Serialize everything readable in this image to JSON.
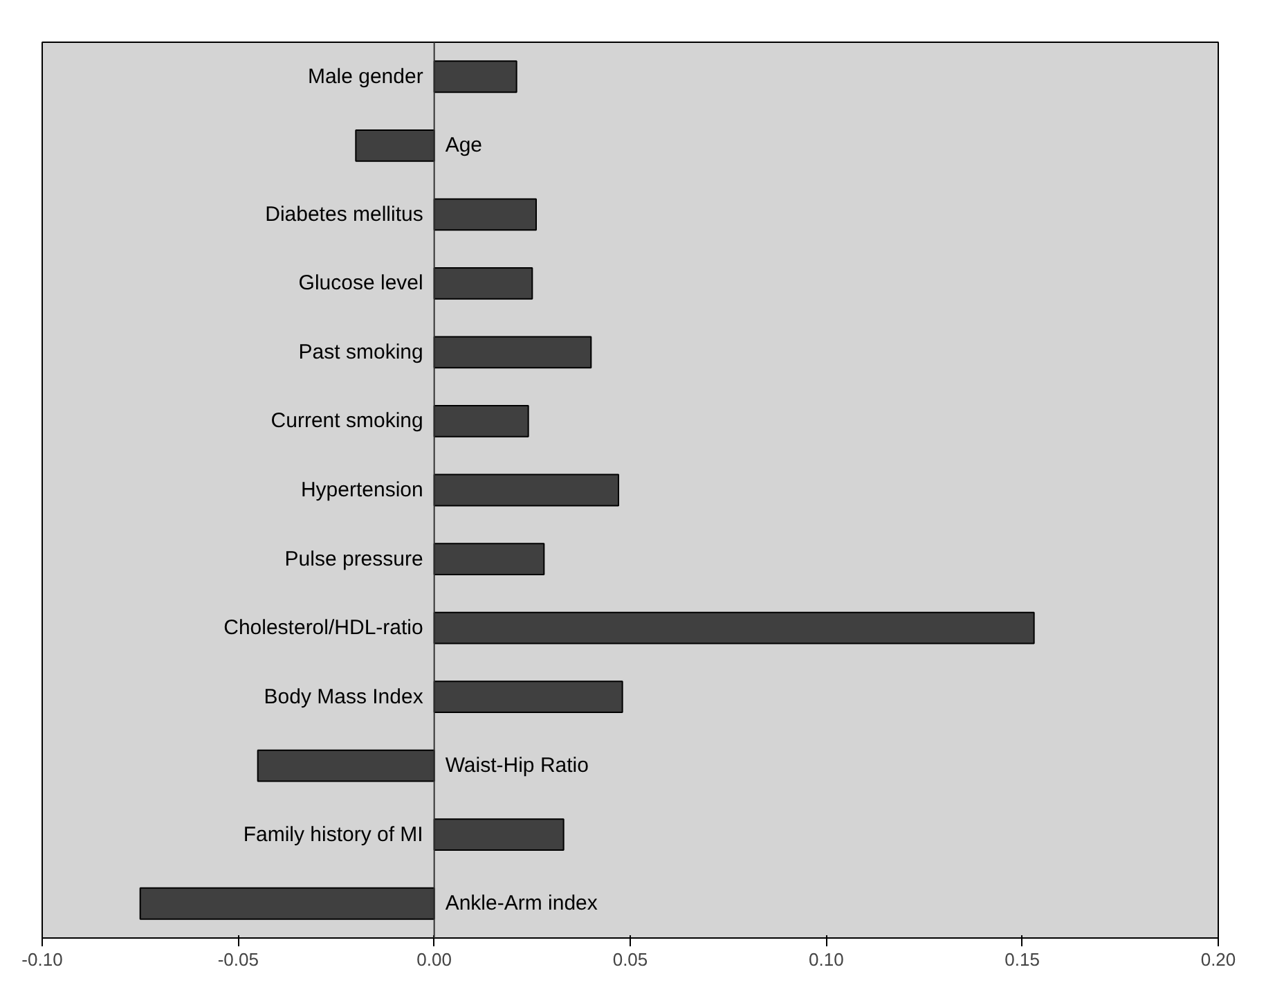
{
  "chart_data": {
    "type": "bar",
    "orientation": "horizontal",
    "categories": [
      "Male gender",
      "Age",
      "Diabetes mellitus",
      "Glucose level",
      "Past smoking",
      "Current smoking",
      "Hypertension",
      "Pulse pressure",
      "Cholesterol/HDL-ratio",
      "Body Mass Index",
      "Waist-Hip Ratio",
      "Family history of MI",
      "Ankle-Arm index"
    ],
    "values": [
      0.021,
      -0.02,
      0.026,
      0.025,
      0.04,
      0.024,
      0.047,
      0.028,
      0.153,
      0.048,
      -0.045,
      0.033,
      -0.075
    ],
    "color": "#404040",
    "xlim": [
      -0.1,
      0.2
    ],
    "xticks": [
      {
        "value": -0.1,
        "label": "-0.10"
      },
      {
        "value": -0.05,
        "label": "-0.05"
      },
      {
        "value": 0,
        "label": "0.00"
      },
      {
        "value": 0.05,
        "label": "0.05"
      },
      {
        "value": 0.1,
        "label": "0.10"
      },
      {
        "value": 0.15,
        "label": "0.15"
      },
      {
        "value": 0.2,
        "label": "0.20"
      }
    ],
    "grid": false
  }
}
